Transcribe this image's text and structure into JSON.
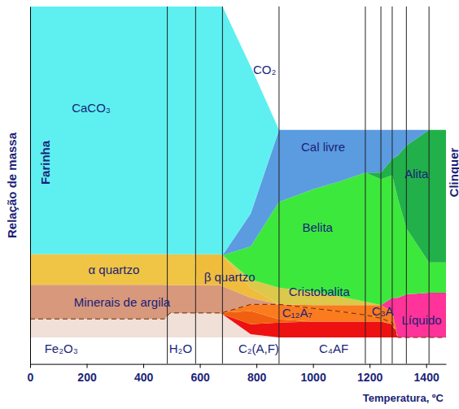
{
  "chart_data": {
    "type": "area",
    "stacked": true,
    "x_label": "Temperatura, ºC",
    "y_label": "Relação de massa",
    "x": [
      0,
      475,
      495,
      580,
      590,
      670,
      680,
      780,
      880,
      1000,
      1100,
      1185,
      1240,
      1280,
      1300,
      1330,
      1410,
      1470
    ],
    "xlim": [
      0,
      1470
    ],
    "xticks": [
      0,
      200,
      400,
      600,
      800,
      1000,
      1200,
      1400
    ],
    "ylim": [
      -8,
      100
    ],
    "yticks": [],
    "tick_labels": "x",
    "series": [
      {
        "name": "Fe₂O₃",
        "color": "#f0e0d8",
        "values": [
          5.6,
          5.6,
          7.4,
          7.4,
          7.4,
          7.4,
          7,
          1,
          0,
          0,
          0,
          0,
          0,
          0,
          0,
          0,
          0,
          0
        ]
      },
      {
        "name": "C₄AF",
        "color": "#ee1111",
        "values": [
          0,
          0,
          0,
          0,
          0,
          0,
          0,
          3,
          4.5,
          4.8,
          4.8,
          4.8,
          4.8,
          4,
          0,
          0,
          0,
          0
        ]
      },
      {
        "name": "C₂(A,F)",
        "color": "#f06010",
        "values": [
          0,
          0,
          0,
          0,
          0,
          0,
          0.5,
          4,
          1,
          0,
          0,
          0,
          0,
          0,
          0,
          0,
          0,
          0
        ]
      },
      {
        "name": "C₁₂A₇",
        "color": "#fb7b1f",
        "line_style": "dashed",
        "values": [
          0,
          0,
          0,
          0,
          0,
          0,
          0,
          2,
          4.5,
          4,
          3,
          2,
          1,
          0.5,
          0,
          0,
          0,
          0
        ]
      },
      {
        "name": "C₃A",
        "color": "#fb7b1f",
        "values": [
          0,
          0,
          0,
          0,
          0,
          0,
          0,
          0,
          0,
          1,
          2,
          3,
          4,
          3.5,
          0,
          0,
          0,
          0
        ]
      },
      {
        "name": "Líquido",
        "color": "#ff3399",
        "values": [
          0,
          0,
          0,
          0,
          0,
          0,
          0,
          0,
          0,
          0,
          0,
          0,
          0,
          4,
          12,
          13,
          13.5,
          13.5
        ]
      },
      {
        "name": "Minerais de argila",
        "color": "#d7987c",
        "values": [
          10.3,
          10.3,
          8.4,
          8.4,
          8.4,
          8.4,
          8,
          2,
          0,
          0,
          0,
          0,
          0,
          0,
          0,
          0,
          0,
          0
        ]
      },
      {
        "name": "α quartzo",
        "color": "#f0c444",
        "values": [
          9.3,
          9.3,
          9.3,
          9.3,
          0,
          0,
          0,
          0,
          0,
          0,
          0,
          0,
          0,
          0,
          0,
          0,
          0,
          0
        ]
      },
      {
        "name": "β quartzo",
        "color": "#efbc3c",
        "values": [
          0,
          0,
          0,
          0,
          9.3,
          9.3,
          9.3,
          3,
          0,
          0,
          0,
          0,
          0,
          0,
          0,
          0,
          0,
          0
        ]
      },
      {
        "name": "Cristobalita",
        "color": "#dcc84a",
        "values": [
          0,
          0,
          0,
          0,
          0,
          0,
          0,
          2.5,
          5,
          4,
          2.5,
          1,
          0,
          0,
          0,
          0,
          0,
          0
        ]
      },
      {
        "name": "Belita",
        "color": "#3de83d",
        "values": [
          0,
          0,
          0,
          0,
          0,
          0,
          0,
          10,
          26,
          31,
          35,
          39,
          38,
          37,
          30,
          20,
          9.2,
          9.2
        ]
      },
      {
        "name": "Alita",
        "color": "#22b04a",
        "values": [
          0,
          0,
          0,
          0,
          0,
          0,
          0,
          0,
          0,
          0,
          0,
          0,
          2,
          5,
          13,
          25,
          40,
          40
        ]
      },
      {
        "name": "Cal livre",
        "color": "#5b9be0",
        "values": [
          0,
          0,
          0,
          0,
          0,
          0,
          0,
          10,
          21.7,
          17.9,
          15.4,
          12.9,
          12.9,
          8.7,
          7.7,
          4.7,
          0,
          0
        ]
      },
      {
        "name": "CaCO₃",
        "color": "#5ef0f0",
        "values": [
          74.8,
          74.8,
          74.9,
          74.9,
          74.9,
          74.9,
          75.2,
          44.3,
          0,
          0,
          0,
          0,
          0,
          0,
          0,
          0,
          0,
          0
        ]
      }
    ],
    "vlines": [
      485,
      585,
      680,
      880,
      1185,
      1240,
      1280,
      1330,
      1410
    ],
    "annotations": [
      "CO₂",
      "H₂O",
      "Farinha",
      "Clinquer"
    ]
  }
}
